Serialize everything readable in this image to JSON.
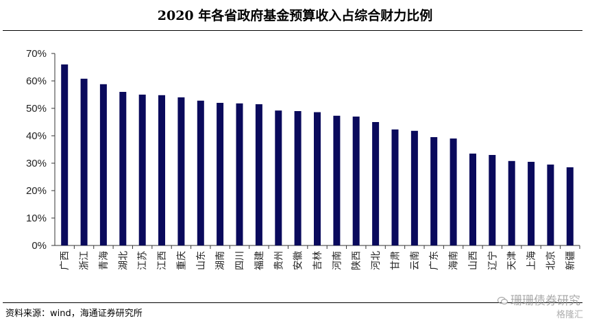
{
  "title": "2020 年各省政府基金预算收入占综合财力比例",
  "source": "资料来源：wind，海通证券研究所",
  "watermark": {
    "line1": "珊珊债券研究",
    "line2": "格隆汇"
  },
  "colors": {
    "bar": "#0a0a5c",
    "axis": "#333333"
  },
  "chart_data": {
    "type": "bar",
    "title": "2020 年各省政府基金预算收入占综合财力比例",
    "xlabel": "",
    "ylabel": "",
    "ylim": [
      0,
      70
    ],
    "yticks": [
      "0%",
      "10%",
      "20%",
      "30%",
      "40%",
      "50%",
      "60%",
      "70%"
    ],
    "y_unit": "%",
    "grid": false,
    "categories": [
      "广西",
      "浙江",
      "青海",
      "湖北",
      "江苏",
      "江西",
      "重庆",
      "山东",
      "湖南",
      "四川",
      "福建",
      "贵州",
      "安徽",
      "吉林",
      "河南",
      "陕西",
      "河北",
      "甘肃",
      "云南",
      "广东",
      "海南",
      "山西",
      "辽宁",
      "天津",
      "上海",
      "北京",
      "新疆"
    ],
    "values": [
      66,
      60.8,
      58.8,
      56,
      55,
      54.8,
      54,
      52.8,
      52,
      51.8,
      51.5,
      49.2,
      49,
      48.6,
      47.3,
      47,
      45,
      42.3,
      41.8,
      39.5,
      39,
      33.5,
      33,
      30.8,
      30.5,
      29.5,
      28.5
    ]
  }
}
